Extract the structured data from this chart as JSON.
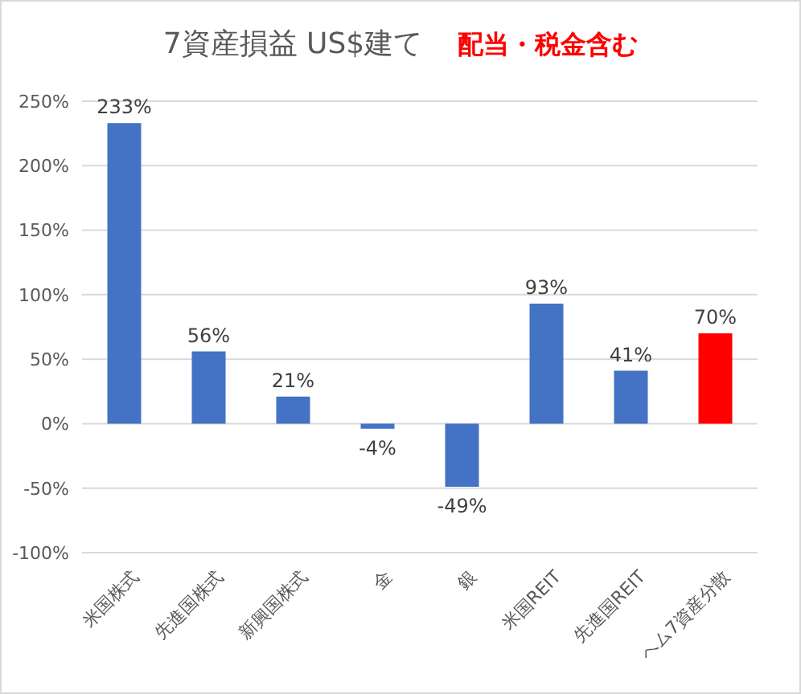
{
  "chart_data": {
    "type": "bar",
    "title": "7資産損益 US$建て",
    "subtitle": "配当・税金含む",
    "categories": [
      "米国株式",
      "先進国株式",
      "新興国株式",
      "金",
      "銀",
      "米国REIT",
      "先進国REIT",
      "ヘム7資産分散"
    ],
    "values": [
      233,
      56,
      21,
      -4,
      -49,
      93,
      41,
      70
    ],
    "colors": [
      "#4472c4",
      "#4472c4",
      "#4472c4",
      "#4472c4",
      "#4472c4",
      "#4472c4",
      "#4472c4",
      "#ff0000"
    ],
    "value_labels": [
      "233%",
      "56%",
      "21%",
      "-4%",
      "-49%",
      "93%",
      "41%",
      "70%"
    ],
    "ylim": [
      -100,
      250
    ],
    "yticks": [
      {
        "value": -100,
        "label": "-100%"
      },
      {
        "value": -50,
        "label": "-50%"
      },
      {
        "value": 0,
        "label": "0%"
      },
      {
        "value": 50,
        "label": "50%"
      },
      {
        "value": 100,
        "label": "100%"
      },
      {
        "value": 150,
        "label": "150%"
      },
      {
        "value": 200,
        "label": "200%"
      },
      {
        "value": 250,
        "label": "250%"
      }
    ],
    "grid": "y",
    "legend": false
  }
}
